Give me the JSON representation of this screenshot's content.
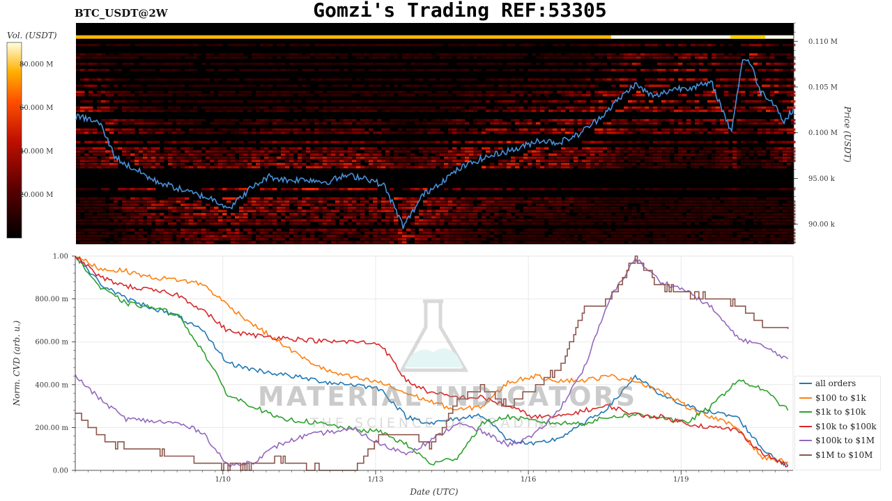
{
  "header": {
    "symbol": "BTC_USDT@2W",
    "title": "Gomzi's Trading REF:53305"
  },
  "watermark": {
    "brand": "MATERIAL INDICATORS",
    "tagline": "THE SCIENCE OF TRADING"
  },
  "chart_data": [
    {
      "type": "heatmap",
      "title": "",
      "xlabel": "",
      "ylabel": "Price (USDT)",
      "colorbar_label": "Vol. (USDT)",
      "colorbar_ticks": [
        "20.000 M",
        "40.000 M",
        "60.000 M",
        "80.000 M"
      ],
      "colorbar_tick_values": [
        20,
        40,
        60,
        80
      ],
      "colorbar_range": [
        0,
        90
      ],
      "y_ticks": [
        "90.00 k",
        "95.00 k",
        "0.100 M",
        "0.105 M",
        "0.110 M"
      ],
      "y_tick_values": [
        90000,
        95000,
        100000,
        105000,
        110000
      ],
      "ylim": [
        87800,
        112000
      ],
      "price_color": "#4a90d9",
      "price_series": {
        "x_days": [
          0.0,
          0.2,
          0.5,
          0.8,
          1.0,
          1.3,
          1.6,
          2.0,
          2.4,
          2.8,
          3.2,
          3.6,
          4.0,
          4.4,
          4.8,
          5.2,
          5.6,
          6.0,
          6.4,
          6.8,
          7.2,
          7.6,
          8.0,
          8.4,
          8.8,
          9.2,
          9.6,
          10.0,
          10.4,
          10.8,
          11.2,
          11.6,
          12.0,
          12.4,
          12.8,
          13.2,
          13.6,
          13.85,
          14.0,
          14.2,
          14.5,
          14.7,
          14.9
        ],
        "y": [
          101700,
          101600,
          101000,
          97500,
          96600,
          95800,
          94800,
          94100,
          93400,
          92800,
          91800,
          93800,
          95200,
          94800,
          94900,
          94600,
          95300,
          95100,
          94200,
          89700,
          93200,
          94700,
          96200,
          97100,
          97800,
          98300,
          99200,
          98900,
          99700,
          101300,
          103300,
          105300,
          103900,
          104800,
          105000,
          105400,
          100100,
          108300,
          107600,
          104600,
          103200,
          101100,
          102700
        ]
      }
    },
    {
      "type": "line",
      "title": "",
      "xlabel": "Date (UTC)",
      "ylabel": "Norm. CVD (arb. u.)",
      "x_ticks": [
        "1/10",
        "1/13",
        "1/16",
        "1/19"
      ],
      "x_tick_days": [
        2.9,
        5.9,
        8.9,
        11.9
      ],
      "y_ticks": [
        "0.00",
        "200.00 m",
        "400.00 m",
        "600.00 m",
        "800.00 m",
        "1.00"
      ],
      "y_tick_values": [
        0,
        0.2,
        0.4,
        0.6,
        0.8,
        1.0
      ],
      "ylim": [
        0,
        1.0
      ],
      "xlim_days": [
        0,
        14.1
      ],
      "grid": true,
      "legend_position": "bottom-right",
      "x_days": [
        0.0,
        0.5,
        1.0,
        1.5,
        2.0,
        2.5,
        3.0,
        3.5,
        4.0,
        4.5,
        5.0,
        5.5,
        6.0,
        6.5,
        7.0,
        7.5,
        8.0,
        8.5,
        9.0,
        9.5,
        10.0,
        10.5,
        11.0,
        11.5,
        12.0,
        12.5,
        13.0,
        13.5,
        14.0
      ],
      "series": [
        {
          "name": "all orders",
          "color": "#1f77b4",
          "values": [
            1.0,
            0.87,
            0.8,
            0.76,
            0.72,
            0.65,
            0.5,
            0.47,
            0.45,
            0.43,
            0.41,
            0.4,
            0.38,
            0.25,
            0.22,
            0.24,
            0.26,
            0.14,
            0.12,
            0.15,
            0.22,
            0.3,
            0.44,
            0.35,
            0.3,
            0.27,
            0.25,
            0.1,
            0.02
          ]
        },
        {
          "name": "$100 to $1k",
          "color": "#ff7f0e",
          "values": [
            1.0,
            0.94,
            0.93,
            0.9,
            0.89,
            0.87,
            0.77,
            0.68,
            0.6,
            0.52,
            0.46,
            0.43,
            0.41,
            0.36,
            0.32,
            0.28,
            0.3,
            0.41,
            0.44,
            0.42,
            0.42,
            0.44,
            0.42,
            0.37,
            0.3,
            0.25,
            0.2,
            0.06,
            0.04
          ]
        },
        {
          "name": "$1k to $10k",
          "color": "#2ca02c",
          "values": [
            1.0,
            0.85,
            0.78,
            0.76,
            0.73,
            0.56,
            0.35,
            0.3,
            0.24,
            0.23,
            0.21,
            0.19,
            0.18,
            0.12,
            0.03,
            0.06,
            0.22,
            0.25,
            0.23,
            0.22,
            0.22,
            0.25,
            0.26,
            0.25,
            0.22,
            0.3,
            0.42,
            0.38,
            0.28
          ]
        },
        {
          "name": "$10k to $100k",
          "color": "#d62728",
          "values": [
            1.0,
            0.9,
            0.86,
            0.84,
            0.82,
            0.75,
            0.65,
            0.63,
            0.62,
            0.61,
            0.6,
            0.6,
            0.59,
            0.42,
            0.36,
            0.34,
            0.34,
            0.3,
            0.25,
            0.25,
            0.28,
            0.3,
            0.26,
            0.25,
            0.22,
            0.2,
            0.19,
            0.08,
            0.02
          ]
        },
        {
          "name": "$100k to $1M",
          "color": "#9467bd",
          "values": [
            0.44,
            0.33,
            0.24,
            0.23,
            0.22,
            0.18,
            0.02,
            0.04,
            0.12,
            0.16,
            0.18,
            0.19,
            0.12,
            0.08,
            0.14,
            0.22,
            0.18,
            0.12,
            0.16,
            0.28,
            0.48,
            0.8,
            0.99,
            0.88,
            0.84,
            0.76,
            0.62,
            0.58,
            0.52
          ]
        },
        {
          "name": "$1M to $10M",
          "color": "#8c564b",
          "values": [
            0.27,
            0.16,
            0.1,
            0.1,
            0.07,
            0.04,
            0.02,
            0.02,
            0.05,
            0.02,
            0.0,
            0.0,
            0.17,
            0.17,
            0.12,
            0.33,
            0.38,
            0.3,
            0.38,
            0.47,
            0.76,
            0.8,
            0.99,
            0.85,
            0.83,
            0.8,
            0.78,
            0.67,
            0.66
          ]
        }
      ]
    }
  ]
}
